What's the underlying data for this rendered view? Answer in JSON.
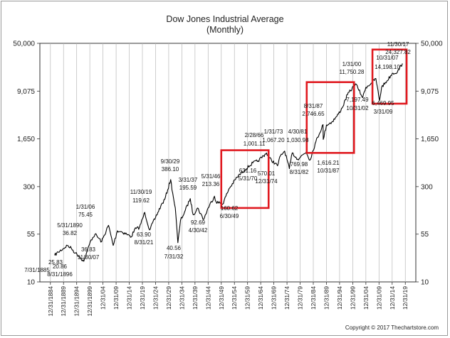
{
  "chart_data": {
    "type": "line",
    "title": "Dow Jones Industrial Average",
    "subtitle": "(Monthly)",
    "xlabel": "",
    "ylabel": "",
    "y_scale": "log",
    "ylim": [
      10,
      50000
    ],
    "y_ticks": [
      10,
      55,
      300,
      1650,
      9075,
      50000
    ],
    "y_tick_labels": [
      "10",
      "55",
      "300",
      "1,650",
      "9,075",
      "50,000"
    ],
    "xlim": [
      1880,
      2023
    ],
    "x_ticks": [
      1884,
      1889,
      1894,
      1899,
      1904,
      1909,
      1914,
      1919,
      1924,
      1929,
      1934,
      1939,
      1944,
      1949,
      1954,
      1959,
      1964,
      1969,
      1974,
      1979,
      1984,
      1989,
      1994,
      1999,
      2004,
      2009,
      2014,
      2019
    ],
    "x_tick_labels": [
      "12/31/1884",
      "12/31/1889",
      "12/31/1894",
      "12/31/1899",
      "12/31/04",
      "12/31/09",
      "12/31/14",
      "12/31/19",
      "12/31/24",
      "12/31/29",
      "12/31/34",
      "12/31/39",
      "12/31/44",
      "12/31/49",
      "12/31/54",
      "12/31/59",
      "12/31/64",
      "12/31/69",
      "12/31/74",
      "12/31/79",
      "12/31/84",
      "12/31/89",
      "12/31/94",
      "12/31/99",
      "12/31/04",
      "12/31/09",
      "12/31/14",
      "12/31/19"
    ],
    "grid": "vertical",
    "series": [
      {
        "color": "#000000",
        "x": [
          1885.6,
          1887,
          1889,
          1890.4,
          1892,
          1893.5,
          1895,
          1896.7,
          1898,
          1899.5,
          1901,
          1903.5,
          1906.1,
          1907.9,
          1909.5,
          1911,
          1913,
          1914.8,
          1916,
          1917.9,
          1919.9,
          1921.7,
          1924,
          1926,
          1927.5,
          1929.75,
          1930.5,
          1931.5,
          1932.5,
          1933.5,
          1935,
          1937.2,
          1938.3,
          1940,
          1942.3,
          1944,
          1946.4,
          1947,
          1949.5,
          1952,
          1955,
          1958,
          1961,
          1963,
          1966.2,
          1967,
          1970.4,
          1971.5,
          1973.1,
          1974.9,
          1976,
          1978,
          1981.3,
          1982.7,
          1985,
          1987.7,
          1987.8,
          1989,
          1991,
          1993,
          1995,
          1997,
          2000.1,
          2001,
          2002.8,
          2004,
          2006,
          2007.8,
          2009.2,
          2010,
          2012,
          2014,
          2016,
          2017.9
        ],
        "values": [
          25.83,
          29,
          33,
          36.82,
          33,
          28,
          25,
          20.86,
          30,
          45,
          55,
          42,
          75.45,
          36.83,
          62,
          60,
          55,
          50,
          65,
          70,
          119.62,
          63.9,
          100,
          150,
          190,
          386.1,
          240,
          140,
          40.56,
          90,
          120,
          195.59,
          110,
          140,
          92.69,
          140,
          213.36,
          175,
          160.62,
          280,
          420,
          550,
          700,
          750,
          1001.11,
          850,
          631.16,
          900,
          1067.2,
          570.01,
          1000,
          800,
          1030.98,
          769.98,
          1500,
          2746.65,
          1616.21,
          2700,
          3000,
          3700,
          5000,
          8000,
          11750.28,
          10000,
          7197.49,
          10400,
          12000,
          14198.1,
          6469.95,
          10500,
          13000,
          17000,
          18000,
          24327.82
        ]
      }
    ],
    "annotations": [
      {
        "label": "25.83",
        "date": "7/31/1885"
      },
      {
        "label": "5/31/1890",
        "value": "36.82"
      },
      {
        "label": "20.86",
        "date": "8/31/1896"
      },
      {
        "label": "1/31/06",
        "value": "75.45"
      },
      {
        "label": "36.83",
        "date": "11/30/07"
      },
      {
        "label": "11/30/19",
        "value": "119.62"
      },
      {
        "label": "63.90",
        "date": "8/31/21"
      },
      {
        "label": "9/30/29",
        "value": "386.10"
      },
      {
        "label": "40.56",
        "date": "7/31/32"
      },
      {
        "label": "3/31/37",
        "value": "195.59"
      },
      {
        "label": "92.69",
        "date": "4/30/42"
      },
      {
        "label": "5/31/46",
        "value": "213.36"
      },
      {
        "label": "160.62",
        "date": "6/30/49"
      },
      {
        "label": "2/28/66",
        "value": "1,001.11"
      },
      {
        "label": "631.16",
        "date": "5/31/70"
      },
      {
        "label": "1/31/73",
        "value": "1,067.20"
      },
      {
        "label": "570.01",
        "date": "12/31/74"
      },
      {
        "label": "4/30/81",
        "value": "1,030.98"
      },
      {
        "label": "769.98",
        "date": "8/31/82"
      },
      {
        "label": "8/31/87",
        "value": "2,746.65"
      },
      {
        "label": "1,616.21",
        "date": "10/31/87"
      },
      {
        "label": "1/31/00",
        "value": "11,750.28"
      },
      {
        "label": "7,197.49",
        "date": "10/31/02"
      },
      {
        "label": "10/31/07",
        "value": "14,198.10"
      },
      {
        "label": "6,469.95",
        "date": "3/31/09"
      },
      {
        "label": "11/30/17",
        "value": "24,327.82"
      }
    ],
    "highlight_boxes": [
      {
        "x": [
          1949,
          1967
        ],
        "y": [
          140,
          1100
        ]
      },
      {
        "x": [
          1981.5,
          1999.5
        ],
        "y": [
          1000,
          12500
        ]
      },
      {
        "x": [
          2006.5,
          2019.5
        ],
        "y": [
          5800,
          40000
        ]
      }
    ]
  },
  "copyright": "Copyright © 2017 Thechartstore.com"
}
